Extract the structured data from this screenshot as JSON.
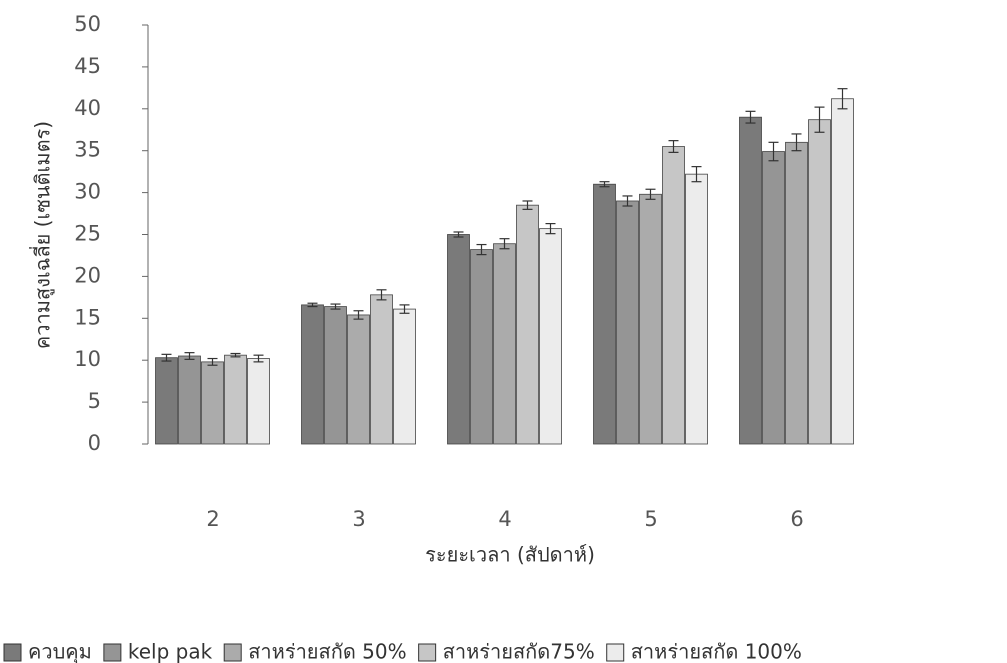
{
  "chart_data": {
    "type": "bar",
    "x_label": "ระยะเวลา (สัปดาห์)",
    "y_label": "ความสูงเฉลี่ย (เซนติเมตร)",
    "categories": [
      "2",
      "3",
      "4",
      "5",
      "6"
    ],
    "series": [
      {
        "name": "ควบคุม",
        "color": "#7a7a7a",
        "values": [
          10.3,
          16.6,
          25.0,
          31.0,
          39.0
        ],
        "errors": [
          0.4,
          0.2,
          0.3,
          0.3,
          0.7
        ]
      },
      {
        "name": "kelp pak",
        "color": "#959595",
        "values": [
          10.5,
          16.4,
          23.2,
          29.0,
          34.9
        ],
        "errors": [
          0.4,
          0.3,
          0.6,
          0.6,
          1.1
        ]
      },
      {
        "name": "สาหร่ายสกัด 50%",
        "color": "#ababab",
        "values": [
          9.8,
          15.4,
          23.9,
          29.8,
          36.0
        ],
        "errors": [
          0.4,
          0.5,
          0.6,
          0.6,
          1.0
        ]
      },
      {
        "name": "สาหร่ายสกัด75%",
        "color": "#c6c6c6",
        "values": [
          10.6,
          17.8,
          28.5,
          35.5,
          38.7
        ],
        "errors": [
          0.2,
          0.6,
          0.5,
          0.7,
          1.5
        ]
      },
      {
        "name": "สาหร่ายสกัด 100%",
        "color": "#ececec",
        "values": [
          10.2,
          16.1,
          25.7,
          32.2,
          41.2
        ],
        "errors": [
          0.4,
          0.5,
          0.6,
          0.9,
          1.2
        ]
      }
    ],
    "ylim": [
      0,
      50
    ],
    "yticks": [
      0,
      5,
      10,
      15,
      20,
      25,
      30,
      35,
      40,
      45,
      50
    ],
    "legend": "bottom"
  }
}
